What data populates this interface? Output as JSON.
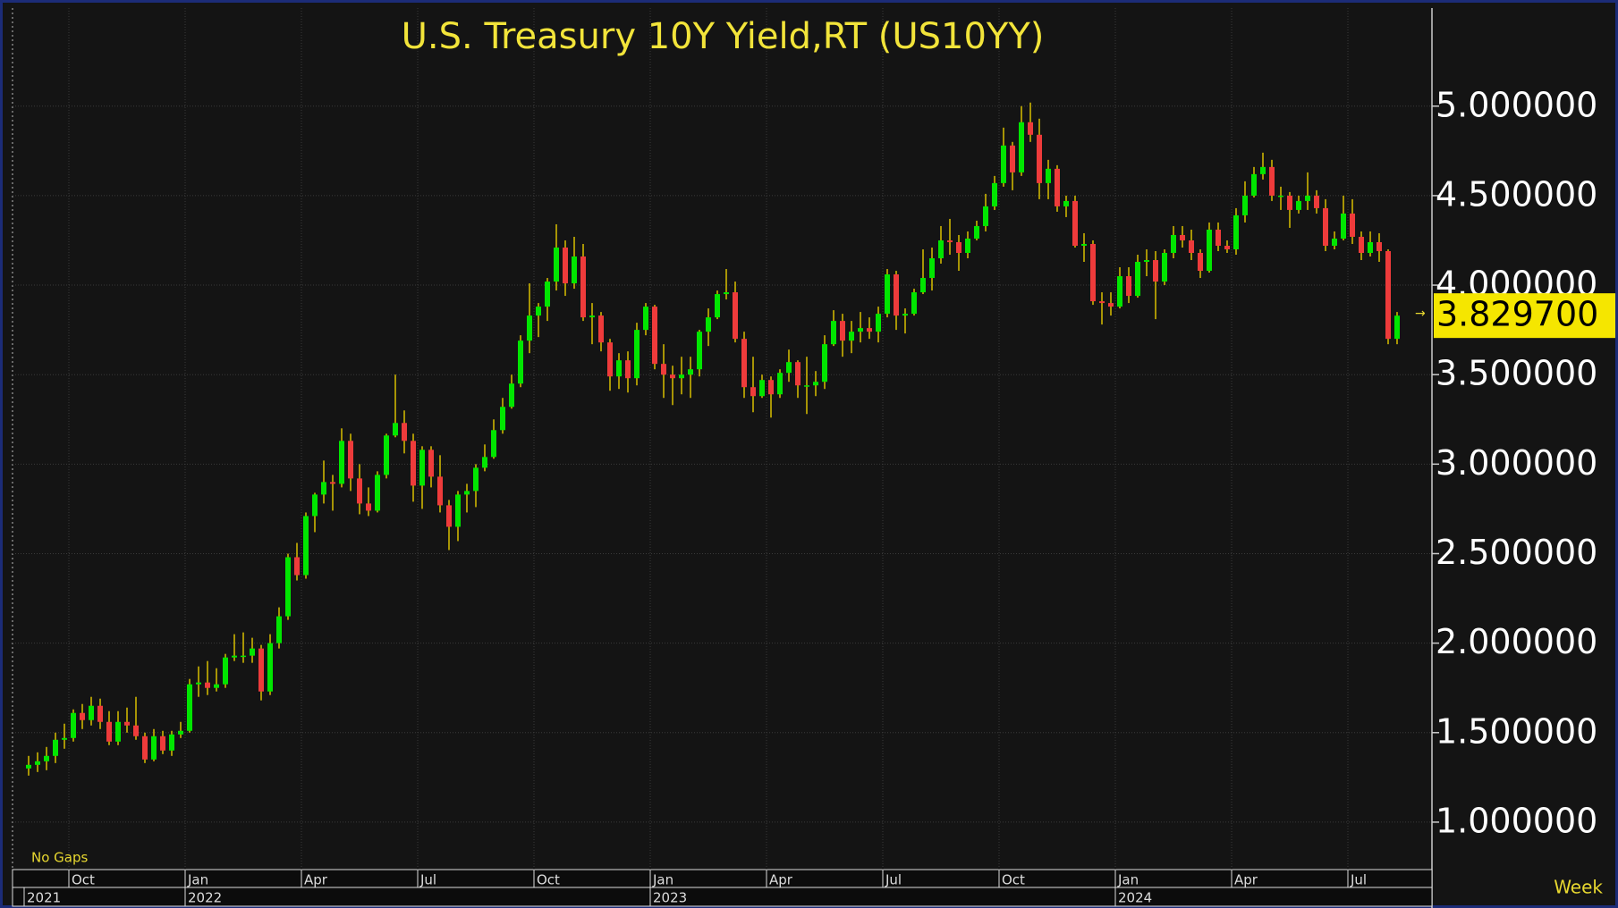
{
  "chart_data": {
    "type": "candlestick",
    "title": "U.S.  Treasury  10Y  Yield,RT  (US10YY)",
    "x": [
      "2021-08",
      "2021-09",
      "2021-09",
      "2021-09",
      "2021-09",
      "2021-10",
      "2021-10",
      "2021-10",
      "2021-10",
      "2021-11",
      "2021-11",
      "2021-11",
      "2021-11",
      "2021-11",
      "2021-12",
      "2021-12",
      "2021-12",
      "2021-12",
      "2022-01",
      "2022-01",
      "2022-01",
      "2022-01",
      "2022-01",
      "2022-02",
      "2022-02",
      "2022-02",
      "2022-02",
      "2022-03",
      "2022-03",
      "2022-03",
      "2022-03",
      "2022-04",
      "2022-04",
      "2022-04",
      "2022-04",
      "2022-05",
      "2022-05",
      "2022-05",
      "2022-05",
      "2022-05",
      "2022-06",
      "2022-06",
      "2022-06",
      "2022-06",
      "2022-07",
      "2022-07",
      "2022-07",
      "2022-07",
      "2022-08",
      "2022-08",
      "2022-08",
      "2022-08",
      "2022-08",
      "2022-09",
      "2022-09",
      "2022-09",
      "2022-09",
      "2022-10",
      "2022-10",
      "2022-10",
      "2022-10",
      "2022-10",
      "2022-11",
      "2022-11",
      "2022-11",
      "2022-11",
      "2022-12",
      "2022-12",
      "2022-12",
      "2022-12",
      "2023-01",
      "2023-01",
      "2023-01",
      "2023-01",
      "2023-01",
      "2023-02",
      "2023-02",
      "2023-02",
      "2023-02",
      "2023-03",
      "2023-03",
      "2023-03",
      "2023-03",
      "2023-04",
      "2023-04",
      "2023-04",
      "2023-04",
      "2023-05",
      "2023-05",
      "2023-05",
      "2023-05",
      "2023-05",
      "2023-06",
      "2023-06",
      "2023-06",
      "2023-06",
      "2023-07",
      "2023-07",
      "2023-07",
      "2023-07",
      "2023-07",
      "2023-08",
      "2023-08",
      "2023-08",
      "2023-08",
      "2023-09",
      "2023-09",
      "2023-09",
      "2023-09",
      "2023-10",
      "2023-10",
      "2023-10",
      "2023-10",
      "2023-10",
      "2023-11",
      "2023-11",
      "2023-11",
      "2023-11",
      "2023-12",
      "2023-12",
      "2023-12",
      "2023-12",
      "2024-01",
      "2024-01",
      "2024-01",
      "2024-01",
      "2024-01",
      "2024-02",
      "2024-02",
      "2024-02",
      "2024-02",
      "2024-03",
      "2024-03",
      "2024-03",
      "2024-03",
      "2024-04",
      "2024-04",
      "2024-04",
      "2024-04",
      "2024-04",
      "2024-05",
      "2024-05",
      "2024-05",
      "2024-05",
      "2024-06",
      "2024-06",
      "2024-06",
      "2024-06",
      "2024-07",
      "2024-07",
      "2024-07",
      "2024-07",
      "2024-07",
      "2024-08"
    ],
    "open": [
      1.3,
      1.32,
      1.34,
      1.37,
      1.46,
      1.47,
      1.61,
      1.57,
      1.65,
      1.56,
      1.45,
      1.56,
      1.54,
      1.48,
      1.35,
      1.48,
      1.4,
      1.49,
      1.51,
      1.77,
      1.78,
      1.75,
      1.77,
      1.92,
      1.93,
      1.93,
      1.97,
      1.73,
      2.0,
      2.15,
      2.48,
      2.38,
      2.71,
      2.83,
      2.9,
      2.89,
      3.13,
      2.92,
      2.78,
      2.74,
      2.94,
      3.16,
      3.23,
      3.13,
      2.88,
      3.08,
      2.93,
      2.77,
      2.65,
      2.83,
      2.85,
      2.98,
      3.04,
      3.19,
      3.32,
      3.45,
      3.69,
      3.83,
      3.88,
      4.02,
      4.21,
      4.01,
      4.16,
      3.82,
      3.83,
      3.68,
      3.49,
      3.58,
      3.48,
      3.75,
      3.88,
      3.56,
      3.5,
      3.48,
      3.5,
      3.53,
      3.74,
      3.82,
      3.95,
      3.96,
      3.7,
      3.43,
      3.38,
      3.47,
      3.39,
      3.51,
      3.57,
      3.44,
      3.44,
      3.46,
      3.67,
      3.8,
      3.69,
      3.74,
      3.76,
      3.74,
      3.84,
      4.06,
      3.83,
      3.84,
      3.96,
      4.04,
      4.15,
      4.25,
      4.24,
      4.18,
      4.26,
      4.33,
      4.44,
      4.57,
      4.78,
      4.63,
      4.91,
      4.84,
      4.57,
      4.65,
      4.44,
      4.47,
      4.22,
      4.23,
      3.91,
      3.9,
      3.88,
      4.05,
      3.94,
      4.13,
      4.14,
      4.02,
      4.18,
      4.28,
      4.25,
      4.18,
      4.08,
      4.31,
      4.22,
      4.2,
      4.39,
      4.5,
      4.62,
      4.66,
      4.5,
      4.5,
      4.42,
      4.47,
      4.5,
      4.43,
      4.22,
      4.26,
      4.4,
      4.27,
      4.18,
      4.24,
      4.19,
      3.7
    ],
    "high": [
      1.37,
      1.39,
      1.42,
      1.5,
      1.55,
      1.63,
      1.66,
      1.7,
      1.69,
      1.62,
      1.62,
      1.64,
      1.7,
      1.5,
      1.52,
      1.51,
      1.51,
      1.56,
      1.8,
      1.87,
      1.9,
      1.86,
      1.94,
      2.05,
      2.06,
      2.03,
      1.99,
      2.05,
      2.2,
      2.5,
      2.56,
      2.73,
      2.84,
      3.02,
      2.94,
      3.2,
      3.17,
      3.0,
      2.87,
      2.96,
      3.17,
      3.5,
      3.3,
      3.17,
      3.1,
      3.1,
      3.05,
      2.8,
      2.85,
      2.89,
      3.0,
      3.11,
      3.25,
      3.37,
      3.5,
      3.72,
      4.01,
      3.9,
      4.04,
      4.34,
      4.25,
      4.27,
      4.23,
      3.9,
      3.85,
      3.7,
      3.62,
      3.63,
      3.79,
      3.9,
      3.89,
      3.67,
      3.55,
      3.6,
      3.6,
      3.75,
      3.87,
      3.97,
      4.09,
      4.02,
      3.74,
      3.6,
      3.5,
      3.49,
      3.53,
      3.64,
      3.58,
      3.6,
      3.52,
      3.72,
      3.86,
      3.84,
      3.8,
      3.85,
      3.82,
      3.88,
      4.09,
      4.08,
      3.87,
      3.98,
      4.2,
      4.21,
      4.33,
      4.37,
      4.28,
      4.3,
      4.36,
      4.51,
      4.61,
      4.88,
      4.8,
      5.0,
      5.02,
      4.93,
      4.7,
      4.67,
      4.5,
      4.5,
      4.29,
      4.25,
      3.96,
      3.96,
      4.1,
      4.1,
      4.17,
      4.2,
      4.19,
      4.2,
      4.33,
      4.33,
      4.31,
      4.2,
      4.35,
      4.35,
      4.25,
      4.43,
      4.58,
      4.66,
      4.74,
      4.7,
      4.55,
      4.52,
      4.5,
      4.63,
      4.53,
      4.48,
      4.3,
      4.5,
      4.48,
      4.3,
      4.3,
      4.29,
      4.2,
      3.85
    ],
    "low": [
      1.26,
      1.28,
      1.29,
      1.33,
      1.41,
      1.45,
      1.52,
      1.54,
      1.52,
      1.43,
      1.43,
      1.5,
      1.46,
      1.33,
      1.34,
      1.38,
      1.37,
      1.47,
      1.5,
      1.7,
      1.71,
      1.73,
      1.75,
      1.9,
      1.89,
      1.89,
      1.68,
      1.71,
      1.97,
      2.13,
      2.35,
      2.36,
      2.62,
      2.78,
      2.74,
      2.87,
      2.85,
      2.72,
      2.71,
      2.73,
      2.92,
      3.15,
      3.06,
      2.79,
      2.75,
      2.87,
      2.73,
      2.52,
      2.57,
      2.73,
      2.76,
      2.96,
      3.03,
      3.17,
      3.31,
      3.43,
      3.62,
      3.71,
      3.8,
      3.97,
      3.94,
      3.98,
      3.8,
      3.67,
      3.63,
      3.41,
      3.42,
      3.4,
      3.44,
      3.72,
      3.53,
      3.37,
      3.33,
      3.39,
      3.37,
      3.49,
      3.66,
      3.81,
      3.92,
      3.68,
      3.37,
      3.29,
      3.37,
      3.26,
      3.37,
      3.46,
      3.37,
      3.28,
      3.38,
      3.42,
      3.66,
      3.6,
      3.62,
      3.68,
      3.7,
      3.68,
      3.82,
      3.75,
      3.73,
      3.83,
      3.95,
      3.97,
      4.12,
      4.17,
      4.08,
      4.15,
      4.25,
      4.3,
      4.42,
      4.55,
      4.53,
      4.61,
      4.8,
      4.48,
      4.48,
      4.41,
      4.38,
      4.21,
      4.13,
      3.89,
      3.78,
      3.83,
      3.87,
      3.9,
      3.93,
      4.05,
      3.81,
      4.0,
      4.15,
      4.21,
      4.14,
      4.04,
      4.07,
      4.19,
      4.18,
      4.17,
      4.35,
      4.49,
      4.59,
      4.47,
      4.42,
      4.32,
      4.4,
      4.42,
      4.4,
      4.19,
      4.2,
      4.25,
      4.23,
      4.14,
      4.16,
      4.13,
      3.67,
      3.67
    ],
    "close": [
      1.32,
      1.34,
      1.37,
      1.46,
      1.47,
      1.61,
      1.57,
      1.65,
      1.56,
      1.45,
      1.56,
      1.54,
      1.48,
      1.35,
      1.48,
      1.4,
      1.49,
      1.51,
      1.77,
      1.78,
      1.75,
      1.77,
      1.92,
      1.93,
      1.93,
      1.97,
      1.73,
      2.0,
      2.15,
      2.48,
      2.38,
      2.71,
      2.83,
      2.9,
      2.89,
      3.13,
      2.92,
      2.78,
      2.74,
      2.94,
      3.16,
      3.23,
      3.13,
      2.88,
      3.08,
      2.93,
      2.77,
      2.65,
      2.83,
      2.85,
      2.98,
      3.04,
      3.19,
      3.32,
      3.45,
      3.69,
      3.83,
      3.88,
      4.02,
      4.21,
      4.01,
      4.16,
      3.82,
      3.83,
      3.68,
      3.49,
      3.58,
      3.48,
      3.75,
      3.88,
      3.56,
      3.5,
      3.48,
      3.5,
      3.53,
      3.74,
      3.82,
      3.95,
      3.96,
      3.7,
      3.43,
      3.38,
      3.47,
      3.39,
      3.51,
      3.57,
      3.44,
      3.44,
      3.46,
      3.67,
      3.8,
      3.69,
      3.74,
      3.76,
      3.74,
      3.84,
      4.06,
      3.83,
      3.84,
      3.96,
      4.04,
      4.15,
      4.25,
      4.24,
      4.18,
      4.26,
      4.33,
      4.44,
      4.57,
      4.78,
      4.63,
      4.91,
      4.84,
      4.57,
      4.65,
      4.44,
      4.47,
      4.22,
      4.23,
      3.91,
      3.9,
      3.88,
      4.05,
      3.94,
      4.13,
      4.14,
      4.02,
      4.18,
      4.28,
      4.25,
      4.18,
      4.08,
      4.31,
      4.22,
      4.2,
      4.39,
      4.5,
      4.62,
      4.66,
      4.5,
      4.5,
      4.42,
      4.47,
      4.5,
      4.43,
      4.22,
      4.26,
      4.4,
      4.27,
      4.18,
      4.24,
      4.19,
      3.7,
      3.8297
    ],
    "last_value_label": "3.829700",
    "up_color": "#00e600",
    "down_color": "#ee3b3b",
    "wick_color": "#d8be00",
    "ylim": [
      0.735,
      5.548
    ],
    "yticks": [
      {
        "value": 1,
        "label": "1.000000"
      },
      {
        "value": 1.5,
        "label": "1.500000"
      },
      {
        "value": 2,
        "label": "2.000000"
      },
      {
        "value": 2.5,
        "label": "2.500000"
      },
      {
        "value": 3,
        "label": "3.000000"
      },
      {
        "value": 3.5,
        "label": "3.500000"
      },
      {
        "value": 4,
        "label": "4.000000"
      },
      {
        "value": 4.5,
        "label": "4.500000"
      },
      {
        "value": 5,
        "label": "5.000000"
      }
    ],
    "xticks": [
      {
        "value": "2021-10",
        "label": "Oct"
      },
      {
        "value": "2022-01",
        "label": "Jan"
      },
      {
        "value": "2022-04",
        "label": "Apr"
      },
      {
        "value": "2022-07",
        "label": "Jul"
      },
      {
        "value": "2022-10",
        "label": "Oct"
      },
      {
        "value": "2023-01",
        "label": "Jan"
      },
      {
        "value": "2023-04",
        "label": "Apr"
      },
      {
        "value": "2023-07",
        "label": "Jul"
      },
      {
        "value": "2023-10",
        "label": "Oct"
      },
      {
        "value": "2024-01",
        "label": "Jan"
      },
      {
        "value": "2024-04",
        "label": "Apr"
      },
      {
        "value": "2024-07",
        "label": "Jul"
      }
    ],
    "year_ticks": [
      {
        "value": "2021-08",
        "label": "2021"
      },
      {
        "value": "2022-01",
        "label": "2022"
      },
      {
        "value": "2023-01",
        "label": "2023"
      },
      {
        "value": "2024-01",
        "label": "2024"
      }
    ],
    "grid": true,
    "gaps_note": "No Gaps",
    "period": "Week"
  }
}
